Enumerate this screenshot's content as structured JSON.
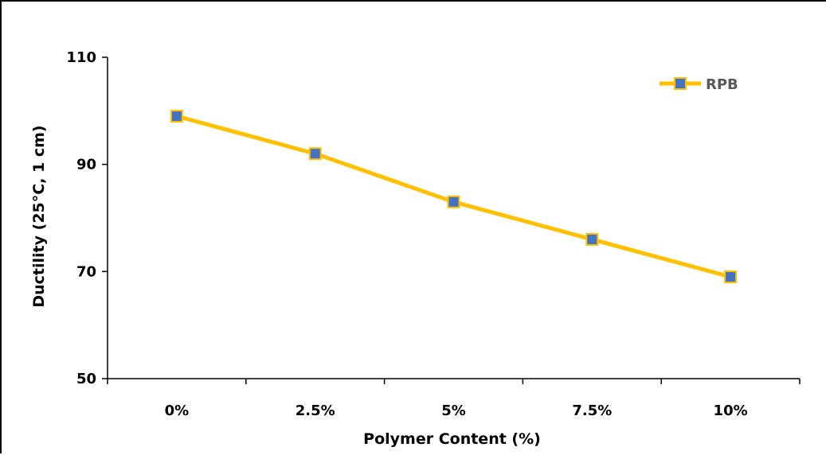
{
  "chart_data": {
    "type": "line",
    "categories": [
      "0%",
      "2.5%",
      "5%",
      "7.5%",
      "10%"
    ],
    "series": [
      {
        "name": "RPB",
        "values": [
          99,
          92,
          83,
          76,
          69
        ],
        "line_color": "#FFC000",
        "marker_fill": "#4472C4",
        "marker_edge": "#FFC000",
        "marker": "square"
      }
    ],
    "xlabel": "Polymer Content (%)",
    "ylabel": "Ductility (25°C, 1 cm)",
    "ylim": [
      50,
      110
    ],
    "yticks": [
      50,
      70,
      90,
      110
    ],
    "ytick_labels": [
      "50",
      "70",
      "90",
      "110"
    ],
    "grid": false,
    "legend_position": "top-right"
  }
}
